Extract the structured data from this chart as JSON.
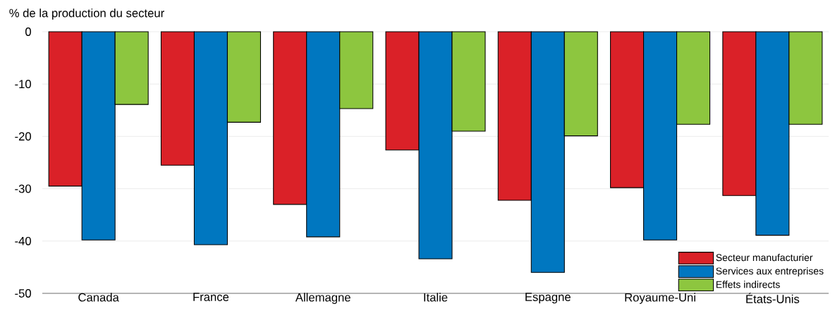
{
  "chart_data": {
    "type": "bar",
    "ylabel": "% de la production du secteur",
    "categories": [
      "Canada",
      "France",
      "Allemagne",
      "Italie",
      "Espagne",
      "Royaume-Uni",
      "États-Unis"
    ],
    "series": [
      {
        "name": "Secteur manufacturier",
        "color": "#da2128",
        "values": [
          -29.5,
          -25.5,
          -33.0,
          -22.6,
          -32.2,
          -29.8,
          -31.3
        ]
      },
      {
        "name": "Services aux entreprises",
        "color": "#0077c0",
        "values": [
          -39.8,
          -40.7,
          -39.2,
          -43.4,
          -46.0,
          -39.8,
          -38.9
        ]
      },
      {
        "name": "Effets indirects",
        "color": "#8dc63f",
        "values": [
          -13.9,
          -17.3,
          -14.7,
          -19.0,
          -19.9,
          -17.7,
          -17.7
        ]
      }
    ],
    "ylim": [
      -50,
      0
    ],
    "yticks": [
      -50,
      -40,
      -30,
      -20,
      -10,
      0
    ],
    "grid": "y",
    "legend": "bottom right"
  }
}
